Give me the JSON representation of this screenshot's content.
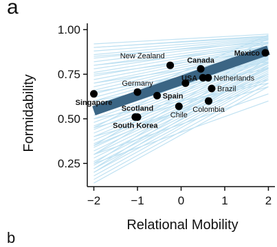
{
  "panel_label": "a",
  "panel_label_next": "b",
  "chart_data": {
    "type": "scatter",
    "xlabel": "Relational Mobility",
    "ylabel": "Formidability",
    "xlim": [
      -2.15,
      2.15
    ],
    "ylim": [
      0.12,
      1.02
    ],
    "x_ticks": [
      {
        "value": -2,
        "label": "−2"
      },
      {
        "value": -1,
        "label": "−1"
      },
      {
        "value": 0,
        "label": "0"
      },
      {
        "value": 1,
        "label": "1"
      },
      {
        "value": 2,
        "label": "2"
      }
    ],
    "y_ticks": [
      {
        "value": 0.25,
        "label": "0.25"
      },
      {
        "value": 0.5,
        "label": "0.50"
      },
      {
        "value": 0.75,
        "label": "0.75"
      },
      {
        "value": 1.0,
        "label": "1.00"
      }
    ],
    "fit_line": {
      "x": [
        -2,
        2
      ],
      "y": [
        0.545,
        0.885
      ],
      "color": "#3b6584"
    },
    "background_lines_color": "#bfe1f2",
    "background_lines": [
      [
        0.92,
        0.975
      ],
      [
        0.9,
        0.965
      ],
      [
        0.88,
        0.955
      ],
      [
        0.86,
        0.95
      ],
      [
        0.84,
        0.945
      ],
      [
        0.82,
        0.94
      ],
      [
        0.8,
        0.93
      ],
      [
        0.78,
        0.925
      ],
      [
        0.76,
        0.92
      ],
      [
        0.74,
        0.91
      ],
      [
        0.72,
        0.905
      ],
      [
        0.7,
        0.9
      ],
      [
        0.68,
        0.895
      ],
      [
        0.66,
        0.89
      ],
      [
        0.64,
        0.885
      ],
      [
        0.62,
        0.88
      ],
      [
        0.6,
        0.875
      ],
      [
        0.58,
        0.87
      ],
      [
        0.56,
        0.86
      ],
      [
        0.54,
        0.855
      ],
      [
        0.52,
        0.85
      ],
      [
        0.5,
        0.845
      ],
      [
        0.48,
        0.84
      ],
      [
        0.46,
        0.835
      ],
      [
        0.44,
        0.83
      ],
      [
        0.42,
        0.82
      ],
      [
        0.4,
        0.815
      ],
      [
        0.38,
        0.81
      ],
      [
        0.36,
        0.8
      ],
      [
        0.34,
        0.79
      ],
      [
        0.32,
        0.785
      ],
      [
        0.3,
        0.78
      ],
      [
        0.28,
        0.77
      ],
      [
        0.26,
        0.76
      ],
      [
        0.24,
        0.75
      ],
      [
        0.22,
        0.74
      ],
      [
        0.2,
        0.73
      ],
      [
        0.18,
        0.72
      ],
      [
        0.16,
        0.7
      ],
      [
        0.14,
        0.68
      ],
      [
        0.55,
        0.97
      ],
      [
        0.45,
        0.95
      ],
      [
        0.35,
        0.93
      ],
      [
        0.3,
        0.9
      ],
      [
        0.25,
        0.87
      ],
      [
        0.22,
        0.84
      ],
      [
        0.2,
        0.8
      ],
      [
        0.35,
        0.75
      ],
      [
        0.45,
        0.72
      ],
      [
        0.4,
        0.68
      ],
      [
        0.25,
        0.6
      ],
      [
        0.3,
        0.64
      ],
      [
        0.5,
        0.7
      ],
      [
        0.6,
        0.78
      ],
      [
        0.65,
        0.82
      ],
      [
        0.7,
        0.85
      ],
      [
        0.75,
        0.88
      ],
      [
        0.8,
        0.9
      ],
      [
        0.85,
        0.93
      ],
      [
        0.9,
        0.96
      ]
    ],
    "point_color": "#000000",
    "points": [
      {
        "name": "Mexico",
        "x": 1.93,
        "y": 0.87,
        "bold": true,
        "label_pos": "left"
      },
      {
        "name": "Canada",
        "x": 0.45,
        "y": 0.78,
        "bold": true,
        "label_pos": "above"
      },
      {
        "name": "New Zealand",
        "x": -0.25,
        "y": 0.8,
        "bold": false,
        "label_pos": "above-left"
      },
      {
        "name": "USA",
        "x": 0.5,
        "y": 0.73,
        "bold": true,
        "label_pos": "left"
      },
      {
        "name": "Netherlands",
        "x": 0.62,
        "y": 0.73,
        "bold": false,
        "label_pos": "right"
      },
      {
        "name": "Germany",
        "x": -1.0,
        "y": 0.65,
        "bold": false,
        "label_pos": "above"
      },
      {
        "name": "Singapore",
        "x": -2.0,
        "y": 0.64,
        "bold": true,
        "label_pos": "below"
      },
      {
        "name": "Spain",
        "x": -0.55,
        "y": 0.63,
        "bold": true,
        "label_pos": "right"
      },
      {
        "name": "Scotland",
        "x": -1.0,
        "y": 0.51,
        "bold": true,
        "label_pos": "above"
      },
      {
        "name": "South Korea",
        "x": -1.05,
        "y": 0.51,
        "bold": true,
        "label_pos": "below"
      },
      {
        "name": "Chile",
        "x": -0.05,
        "y": 0.57,
        "bold": false,
        "label_pos": "below"
      },
      {
        "name": "Colombia",
        "x": 0.63,
        "y": 0.6,
        "bold": false,
        "label_pos": "below"
      },
      {
        "name": "Brazil",
        "x": 0.7,
        "y": 0.67,
        "bold": false,
        "label_pos": "right"
      },
      {
        "name": "",
        "x": 0.1,
        "y": 0.7,
        "bold": false,
        "label_pos": "none"
      }
    ]
  }
}
